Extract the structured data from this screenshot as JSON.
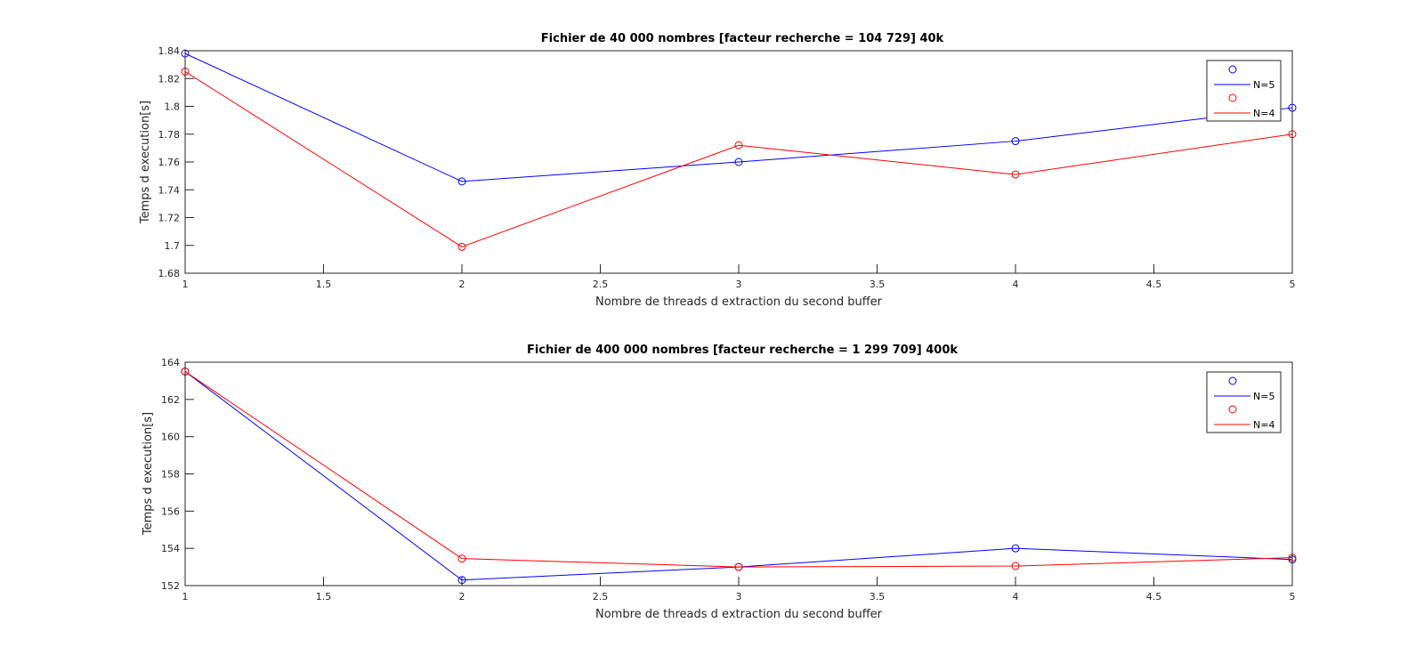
{
  "chart_data": [
    {
      "type": "line",
      "title": "Fichier de 40 000 nombres [facteur recherche = 104 729] 40k",
      "xlabel": "Nombre de threads d extraction du second buffer",
      "ylabel": "Temps d execution[s]",
      "xlim": [
        1,
        5
      ],
      "ylim": [
        1.68,
        1.84
      ],
      "xticks": [
        1,
        1.5,
        2,
        2.5,
        3,
        3.5,
        4,
        4.5,
        5
      ],
      "xtick_labels": [
        "1",
        "1.5",
        "2",
        "2.5",
        "3",
        "3.5",
        "4",
        "4.5",
        "5"
      ],
      "yticks": [
        1.68,
        1.7,
        1.72,
        1.74,
        1.76,
        1.78,
        1.8,
        1.82,
        1.84
      ],
      "ytick_labels": [
        "1.68",
        "1.7",
        "1.72",
        "1.74",
        "1.76",
        "1.78",
        "1.8",
        "1.82",
        "1.84"
      ],
      "grid": false,
      "legend_position": "top-right",
      "x": [
        1,
        2,
        3,
        4,
        5
      ],
      "series": [
        {
          "name": "N=5",
          "color": "#0000ff",
          "marker": "circle",
          "values": [
            1.838,
            1.746,
            1.76,
            1.775,
            1.799
          ]
        },
        {
          "name": "N=4",
          "color": "#ff0000",
          "marker": "circle",
          "values": [
            1.825,
            1.699,
            1.772,
            1.751,
            1.78
          ]
        }
      ]
    },
    {
      "type": "line",
      "title": "Fichier de 400 000 nombres [facteur recherche = 1 299 709] 400k",
      "xlabel": "Nombre de threads d extraction du second buffer",
      "ylabel": "Temps d execution[s]",
      "xlim": [
        1,
        5
      ],
      "ylim": [
        152,
        164
      ],
      "xticks": [
        1,
        1.5,
        2,
        2.5,
        3,
        3.5,
        4,
        4.5,
        5
      ],
      "xtick_labels": [
        "1",
        "1.5",
        "2",
        "2.5",
        "3",
        "3.5",
        "4",
        "4.5",
        "5"
      ],
      "yticks": [
        152,
        154,
        156,
        158,
        160,
        162,
        164
      ],
      "ytick_labels": [
        "152",
        "154",
        "156",
        "158",
        "160",
        "162",
        "164"
      ],
      "grid": false,
      "legend_position": "top-right",
      "x": [
        1,
        2,
        3,
        4,
        5
      ],
      "series": [
        {
          "name": "N=5",
          "color": "#0000ff",
          "marker": "circle",
          "values": [
            163.5,
            152.3,
            153.0,
            154.0,
            153.4
          ]
        },
        {
          "name": "N=4",
          "color": "#ff0000",
          "marker": "circle",
          "values": [
            163.5,
            153.45,
            153.0,
            153.05,
            153.5
          ]
        }
      ]
    }
  ]
}
